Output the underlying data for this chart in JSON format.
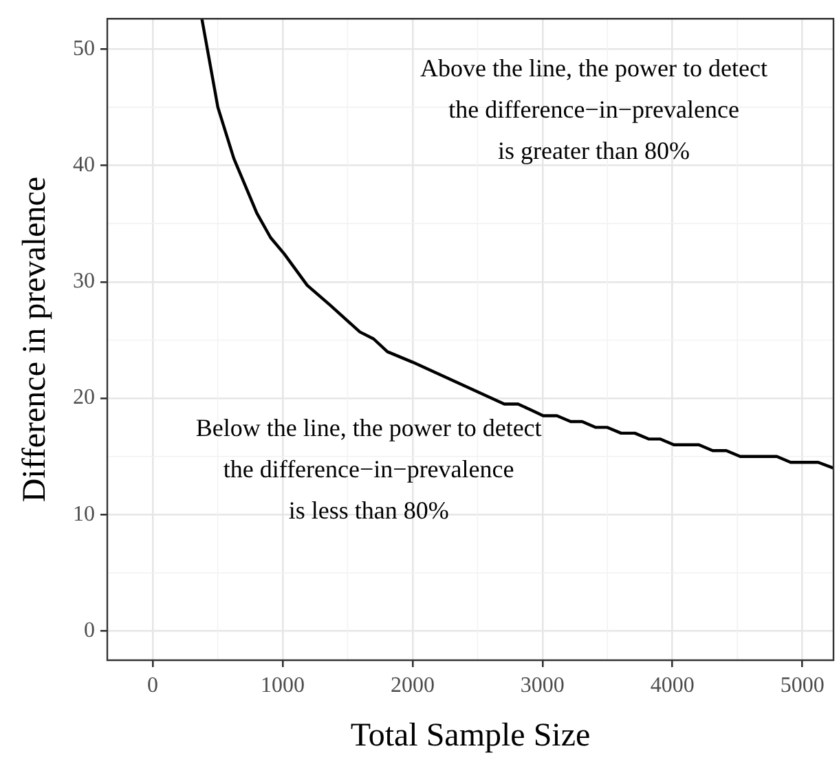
{
  "chart_data": {
    "type": "line",
    "xlabel": "Total Sample Size",
    "ylabel": "Difference in prevalence",
    "x": [
      378,
      501,
      624,
      801,
      907,
      1012,
      1189,
      1365,
      1594,
      1700,
      1806,
      2000,
      2706,
      2812,
      2910,
      3005,
      3111,
      3217,
      3305,
      3410,
      3499,
      3605,
      3711,
      3817,
      3905,
      4011,
      4204,
      4310,
      4415,
      4522,
      4804,
      4910,
      5122,
      5240
    ],
    "series": [
      {
        "color": "#000000",
        "values": [
          52.6,
          45.0,
          40.6,
          35.9,
          33.8,
          32.4,
          29.7,
          28.0,
          25.7,
          25.1,
          24.0,
          23.1,
          19.5,
          19.5,
          19.0,
          18.5,
          18.5,
          18.0,
          18.0,
          17.5,
          17.5,
          17.0,
          17.0,
          16.5,
          16.5,
          16.0,
          16.0,
          15.5,
          15.5,
          15.0,
          15.0,
          14.5,
          14.5,
          14.0
        ]
      }
    ],
    "xlim": [
      -350,
      5240
    ],
    "ylim": [
      -2.5,
      52.6
    ],
    "xticks": [
      0,
      1000,
      2000,
      3000,
      4000,
      5000
    ],
    "yticks": [
      0,
      10,
      20,
      30,
      40,
      50
    ],
    "grid": true,
    "legend": false,
    "marker": "none",
    "line_style": "solid",
    "annotations": [
      "Above the line, the power to detect\nthe difference−in−prevalence\nis greater than 80%",
      "Below the line, the power to detect\nthe difference−in−prevalence\nis less than 80%"
    ]
  }
}
